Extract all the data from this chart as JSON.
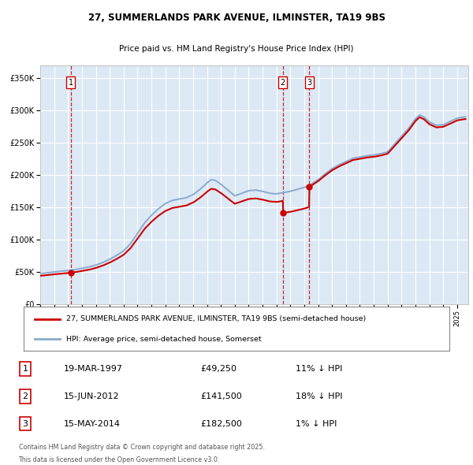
{
  "title": "27, SUMMERLANDS PARK AVENUE, ILMINSTER, TA19 9BS",
  "subtitle": "Price paid vs. HM Land Registry's House Price Index (HPI)",
  "legend_line1": "27, SUMMERLANDS PARK AVENUE, ILMINSTER, TA19 9BS (semi-detached house)",
  "legend_line2": "HPI: Average price, semi-detached house, Somerset",
  "footer1": "Contains HM Land Registry data © Crown copyright and database right 2025.",
  "footer2": "This data is licensed under the Open Government Licence v3.0.",
  "transaction_display": [
    {
      "num": "1",
      "date": "19-MAR-1997",
      "price": "£49,250",
      "pct": "11% ↓ HPI"
    },
    {
      "num": "2",
      "date": "15-JUN-2012",
      "price": "£141,500",
      "pct": "18% ↓ HPI"
    },
    {
      "num": "3",
      "date": "15-MAY-2014",
      "price": "£182,500",
      "pct": "1% ↓ HPI"
    }
  ],
  "price_line_color": "#cc0000",
  "hpi_line_color": "#88aacc",
  "dashed_line_color": "#cc0000",
  "background_color": "#ffffff",
  "plot_bg_color": "#dce9f5",
  "grid_color": "#ffffff",
  "ylim": [
    0,
    370000
  ],
  "yticks": [
    0,
    50000,
    100000,
    150000,
    200000,
    250000,
    300000,
    350000
  ],
  "sale_years": [
    1997.21,
    2012.46,
    2014.37
  ],
  "sale_prices": [
    49250,
    141500,
    182500
  ],
  "hpi_keypoints": [
    [
      1995.0,
      48000
    ],
    [
      1995.5,
      49000
    ],
    [
      1996.0,
      50500
    ],
    [
      1996.5,
      51500
    ],
    [
      1997.0,
      52500
    ],
    [
      1997.5,
      54000
    ],
    [
      1998.0,
      56000
    ],
    [
      1998.5,
      58000
    ],
    [
      1999.0,
      61000
    ],
    [
      1999.5,
      65000
    ],
    [
      2000.0,
      70000
    ],
    [
      2000.5,
      76000
    ],
    [
      2001.0,
      83000
    ],
    [
      2001.5,
      94000
    ],
    [
      2002.0,
      110000
    ],
    [
      2002.5,
      126000
    ],
    [
      2003.0,
      138000
    ],
    [
      2003.5,
      148000
    ],
    [
      2004.0,
      156000
    ],
    [
      2004.5,
      161000
    ],
    [
      2005.0,
      163000
    ],
    [
      2005.5,
      165000
    ],
    [
      2006.0,
      170000
    ],
    [
      2006.5,
      178000
    ],
    [
      2007.0,
      188000
    ],
    [
      2007.3,
      193000
    ],
    [
      2007.6,
      192000
    ],
    [
      2008.0,
      186000
    ],
    [
      2008.5,
      177000
    ],
    [
      2009.0,
      168000
    ],
    [
      2009.5,
      172000
    ],
    [
      2010.0,
      176000
    ],
    [
      2010.5,
      177000
    ],
    [
      2011.0,
      175000
    ],
    [
      2011.5,
      172000
    ],
    [
      2012.0,
      171000
    ],
    [
      2012.5,
      173000
    ],
    [
      2013.0,
      175000
    ],
    [
      2013.5,
      178000
    ],
    [
      2014.0,
      181000
    ],
    [
      2014.5,
      186000
    ],
    [
      2015.0,
      193000
    ],
    [
      2015.5,
      202000
    ],
    [
      2016.0,
      210000
    ],
    [
      2016.5,
      216000
    ],
    [
      2017.0,
      221000
    ],
    [
      2017.5,
      226000
    ],
    [
      2018.0,
      228000
    ],
    [
      2018.5,
      230000
    ],
    [
      2019.0,
      231000
    ],
    [
      2019.5,
      233000
    ],
    [
      2020.0,
      236000
    ],
    [
      2020.5,
      248000
    ],
    [
      2021.0,
      260000
    ],
    [
      2021.5,
      272000
    ],
    [
      2022.0,
      287000
    ],
    [
      2022.3,
      293000
    ],
    [
      2022.6,
      290000
    ],
    [
      2023.0,
      282000
    ],
    [
      2023.5,
      277000
    ],
    [
      2024.0,
      278000
    ],
    [
      2024.5,
      283000
    ],
    [
      2025.0,
      288000
    ],
    [
      2025.5,
      290000
    ]
  ]
}
